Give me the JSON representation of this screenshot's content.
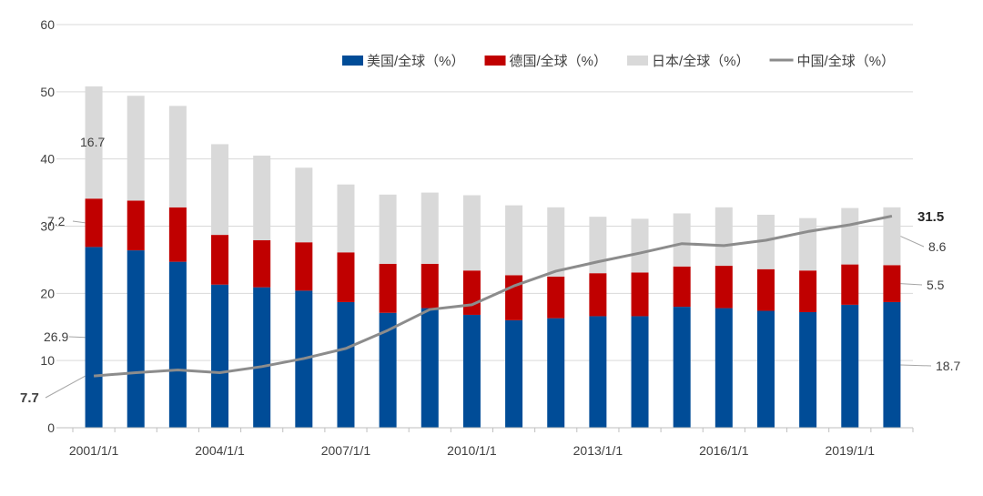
{
  "colors": {
    "us": "#004c97",
    "de": "#c00000",
    "jp": "#d9d9d9",
    "cn": "#8c8c8c",
    "grid": "#d9d9d9",
    "text": "#404040"
  },
  "chart_data": {
    "type": "bar",
    "stacked": true,
    "ylim": [
      0,
      60
    ],
    "yticks": [
      "0",
      "10",
      "20",
      "30",
      "40",
      "50",
      "60"
    ],
    "categories": [
      "2001/1/1",
      "2002/1/1",
      "2003/1/1",
      "2004/1/1",
      "2005/1/1",
      "2006/1/1",
      "2007/1/1",
      "2008/1/1",
      "2009/1/1",
      "2010/1/1",
      "2011/1/1",
      "2012/1/1",
      "2013/1/1",
      "2014/1/1",
      "2015/1/1",
      "2016/1/1",
      "2017/1/1",
      "2018/1/1",
      "2019/1/1",
      "2020/1/1"
    ],
    "xtick_labels": [
      "2001/1/1",
      "",
      "",
      "2004/1/1",
      "",
      "",
      "2007/1/1",
      "",
      "",
      "2010/1/1",
      "",
      "",
      "2013/1/1",
      "",
      "",
      "2016/1/1",
      "",
      "",
      "2019/1/1",
      ""
    ],
    "series": [
      {
        "key": "us",
        "name": "美国/全球（%）",
        "kind": "bar",
        "values": [
          26.9,
          26.4,
          24.7,
          21.3,
          20.9,
          20.4,
          18.7,
          17.1,
          17.8,
          16.8,
          16.0,
          16.3,
          16.6,
          16.6,
          18.0,
          17.8,
          17.4,
          17.2,
          18.3,
          18.7
        ]
      },
      {
        "key": "de",
        "name": "德国/全球（%）",
        "kind": "bar",
        "values": [
          7.2,
          7.4,
          8.1,
          7.4,
          7.0,
          7.2,
          7.4,
          7.3,
          6.6,
          6.6,
          6.7,
          6.2,
          6.4,
          6.5,
          6.0,
          6.3,
          6.2,
          6.2,
          6.0,
          5.5
        ]
      },
      {
        "key": "jp",
        "name": "日本/全球（%）",
        "kind": "bar",
        "values": [
          16.7,
          15.6,
          15.1,
          13.5,
          12.6,
          11.1,
          10.1,
          10.3,
          10.6,
          11.2,
          10.4,
          10.3,
          8.4,
          8.0,
          7.9,
          8.7,
          8.1,
          7.8,
          8.4,
          8.6
        ]
      },
      {
        "key": "cn",
        "name": "中国/全球（%）",
        "kind": "line",
        "values": [
          7.7,
          8.2,
          8.6,
          8.2,
          9.1,
          10.3,
          11.8,
          14.5,
          17.6,
          18.3,
          21.1,
          23.3,
          24.7,
          26.0,
          27.4,
          27.1,
          27.9,
          29.2,
          30.2,
          31.5
        ]
      }
    ],
    "data_labels": {
      "first": [
        {
          "series": "jp",
          "text": "16.7"
        },
        {
          "series": "de",
          "text": "7.2"
        },
        {
          "series": "us",
          "text": "26.9"
        },
        {
          "series": "cn",
          "text": "7.7"
        }
      ],
      "last": [
        {
          "series": "cn",
          "text": "31.5"
        },
        {
          "series": "jp",
          "text": "8.6"
        },
        {
          "series": "de",
          "text": "5.5"
        },
        {
          "series": "us",
          "text": "18.7"
        }
      ]
    },
    "legend_position": "top-right",
    "grid": true
  }
}
